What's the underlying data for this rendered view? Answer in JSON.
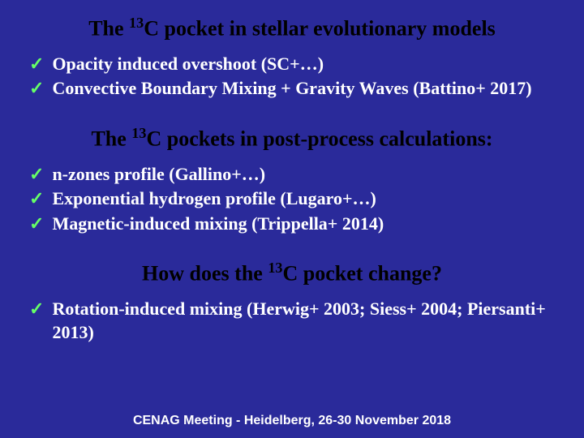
{
  "colors": {
    "background": "#2a2a9a",
    "title_text": "#000000",
    "body_text": "#ffffff",
    "checkmark": "#66ff66",
    "footer_text": "#ffffff"
  },
  "typography": {
    "title_fontsize": 26,
    "bullet_fontsize": 22,
    "footer_fontsize": 16,
    "title_font": "Times New Roman",
    "footer_font": "Comic Sans MS"
  },
  "title1_pre": "The ",
  "title1_sup": "13",
  "title1_post": "C pocket in stellar evolutionary models",
  "section1": {
    "b0": "Opacity induced overshoot (SC+…)",
    "b1": "Convective Boundary Mixing + Gravity Waves (Battino+ 2017)"
  },
  "title2_pre": "The ",
  "title2_sup": "13",
  "title2_post": "C pockets in post-process calculations:",
  "section2": {
    "b0": "n-zones profile (Gallino+…)",
    "b1": "Exponential hydrogen profile (Lugaro+…)",
    "b2": "Magnetic-induced mixing (Trippella+ 2014)"
  },
  "title3_pre": "How does the ",
  "title3_sup": "13",
  "title3_post": "C pocket change?",
  "section3": {
    "b0": "Rotation-induced mixing (Herwig+ 2003; Siess+ 2004; Piersanti+ 2013)"
  },
  "footer": "CENAG Meeting - Heidelberg, 26-30 November 2018",
  "check_glyph": "✓"
}
